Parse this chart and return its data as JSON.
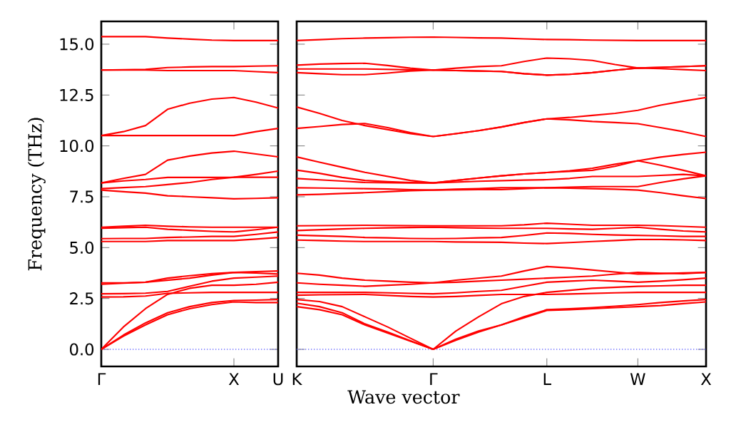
{
  "chart_data": [
    {
      "type": "line",
      "ylabel": "Frequency (THz)",
      "ylim": [
        -0.84,
        16.12
      ],
      "categories": [
        "Γ",
        null,
        null,
        null,
        null,
        null,
        "X",
        null,
        "U"
      ],
      "yticks": [
        {
          "value": 0,
          "label": "0.0"
        },
        {
          "value": 2.5,
          "label": "2.5"
        },
        {
          "value": 5,
          "label": "5.0"
        },
        {
          "value": 7.5,
          "label": "7.5"
        },
        {
          "value": 10,
          "label": "10.0"
        },
        {
          "value": 12.5,
          "label": "12.5"
        },
        {
          "value": 15,
          "label": "15.0"
        }
      ],
      "ref_lines": [
        {
          "axis": "y",
          "value": 0,
          "color": "#6f6fff",
          "line_style": "dotted"
        }
      ],
      "series": [
        {
          "color": "#ff0000",
          "values": [
            0,
            0.65,
            1.2,
            1.7,
            2.0,
            2.2,
            2.33,
            2.3,
            2.3
          ]
        },
        {
          "color": "#ff0000",
          "values": [
            0,
            0.7,
            1.3,
            1.8,
            2.1,
            2.3,
            2.4,
            2.42,
            2.45
          ]
        },
        {
          "color": "#ff0000",
          "values": [
            0,
            1.1,
            2.0,
            2.7,
            3.0,
            3.15,
            3.15,
            3.2,
            3.3
          ]
        },
        {
          "color": "#ff0000",
          "values": [
            2.57,
            2.58,
            2.62,
            2.75,
            2.78,
            2.8,
            2.8,
            2.8,
            2.8
          ]
        },
        {
          "color": "#ff0000",
          "values": [
            2.73,
            2.74,
            2.76,
            2.85,
            3.1,
            3.35,
            3.5,
            3.55,
            3.6
          ]
        },
        {
          "color": "#ff0000",
          "values": [
            3.27,
            3.27,
            3.3,
            3.5,
            3.62,
            3.72,
            3.78,
            3.82,
            3.85
          ]
        },
        {
          "color": "#ff0000",
          "values": [
            3.2,
            3.25,
            3.3,
            3.4,
            3.5,
            3.65,
            3.78,
            3.75,
            3.7
          ]
        },
        {
          "color": "#ff0000",
          "values": [
            5.3,
            5.3,
            5.3,
            5.35,
            5.35,
            5.35,
            5.35,
            5.42,
            5.5
          ]
        },
        {
          "color": "#ff0000",
          "values": [
            5.44,
            5.45,
            5.45,
            5.5,
            5.52,
            5.55,
            5.55,
            5.65,
            5.77
          ]
        },
        {
          "color": "#ff0000",
          "values": [
            5.95,
            5.98,
            6.0,
            5.9,
            5.85,
            5.8,
            5.77,
            5.88,
            6.0
          ]
        },
        {
          "color": "#ff0000",
          "values": [
            6.0,
            6.05,
            6.1,
            6.05,
            6.02,
            6.0,
            6.0,
            6.0,
            6.0
          ]
        },
        {
          "color": "#ff0000",
          "values": [
            7.83,
            7.75,
            7.68,
            7.55,
            7.5,
            7.45,
            7.4,
            7.42,
            7.45
          ]
        },
        {
          "color": "#ff0000",
          "values": [
            7.9,
            7.95,
            8.0,
            8.1,
            8.2,
            8.35,
            8.46,
            8.46,
            8.46
          ]
        },
        {
          "color": "#ff0000",
          "values": [
            8.18,
            8.28,
            8.35,
            8.45,
            8.45,
            8.45,
            8.46,
            8.6,
            8.76
          ]
        },
        {
          "color": "#ff0000",
          "values": [
            8.18,
            8.4,
            8.6,
            9.3,
            9.5,
            9.65,
            9.74,
            9.6,
            9.46
          ]
        },
        {
          "color": "#ff0000",
          "values": [
            10.51,
            10.51,
            10.51,
            10.51,
            10.51,
            10.51,
            10.51,
            10.7,
            10.86
          ]
        },
        {
          "color": "#ff0000",
          "values": [
            10.51,
            10.7,
            11.0,
            11.8,
            12.1,
            12.3,
            12.38,
            12.15,
            11.86
          ]
        },
        {
          "color": "#ff0000",
          "values": [
            13.73,
            13.73,
            13.73,
            13.7,
            13.7,
            13.7,
            13.7,
            13.65,
            13.6
          ]
        },
        {
          "color": "#ff0000",
          "values": [
            13.73,
            13.74,
            13.76,
            13.85,
            13.88,
            13.9,
            13.9,
            13.92,
            13.94
          ]
        },
        {
          "color": "#ff0000",
          "values": [
            15.37,
            15.37,
            15.37,
            15.3,
            15.25,
            15.2,
            15.18,
            15.18,
            15.18
          ]
        }
      ]
    },
    {
      "type": "line",
      "xlabel": "Wave vector",
      "tick_labels": "x",
      "ylim": [
        -0.84,
        16.12
      ],
      "categories": [
        "K",
        null,
        null,
        null,
        null,
        null,
        "Γ",
        null,
        null,
        null,
        null,
        "L",
        null,
        null,
        null,
        "W",
        null,
        null,
        "X"
      ],
      "yticks": [
        0,
        2.5,
        5,
        7.5,
        10,
        12.5,
        15
      ],
      "ref_lines": [
        {
          "axis": "y",
          "value": 0,
          "color": "#6f6fff",
          "line_style": "dotted"
        }
      ],
      "series": [
        {
          "color": "#ff0000",
          "values": [
            2.1,
            1.95,
            1.7,
            1.2,
            0.8,
            0.4,
            0,
            0.45,
            0.85,
            1.2,
            1.55,
            1.91,
            1.95,
            2.0,
            2.05,
            2.1,
            2.15,
            2.25,
            2.33
          ]
        },
        {
          "color": "#ff0000",
          "values": [
            2.27,
            2.1,
            1.8,
            1.25,
            0.85,
            0.42,
            0,
            0.5,
            0.9,
            1.2,
            1.6,
            1.95,
            2.0,
            2.05,
            2.12,
            2.2,
            2.3,
            2.38,
            2.45
          ]
        },
        {
          "color": "#ff0000",
          "values": [
            2.45,
            2.35,
            2.1,
            1.6,
            1.1,
            0.55,
            0,
            0.9,
            1.6,
            2.24,
            2.6,
            2.8,
            2.9,
            3.0,
            3.05,
            3.1,
            3.12,
            3.15,
            3.15
          ]
        },
        {
          "color": "#ff0000",
          "values": [
            2.66,
            2.68,
            2.69,
            2.7,
            2.65,
            2.6,
            2.57,
            2.6,
            2.65,
            2.7,
            2.7,
            2.7,
            2.72,
            2.75,
            2.78,
            2.8,
            2.8,
            2.8,
            2.8
          ]
        },
        {
          "color": "#ff0000",
          "values": [
            2.8,
            2.8,
            2.8,
            2.8,
            2.78,
            2.75,
            2.73,
            2.78,
            2.85,
            2.9,
            3.1,
            3.3,
            3.35,
            3.4,
            3.35,
            3.3,
            3.35,
            3.42,
            3.5
          ]
        },
        {
          "color": "#ff0000",
          "values": [
            3.27,
            3.2,
            3.15,
            3.1,
            3.15,
            3.2,
            3.27,
            3.3,
            3.35,
            3.4,
            3.45,
            3.5,
            3.55,
            3.6,
            3.7,
            3.78,
            3.74,
            3.72,
            3.78
          ]
        },
        {
          "color": "#ff0000",
          "values": [
            3.74,
            3.65,
            3.5,
            3.4,
            3.35,
            3.3,
            3.27,
            3.4,
            3.5,
            3.6,
            3.85,
            4.07,
            4.0,
            3.9,
            3.8,
            3.7,
            3.72,
            3.76,
            3.78
          ]
        },
        {
          "color": "#ff0000",
          "values": [
            5.37,
            5.35,
            5.32,
            5.3,
            5.3,
            5.3,
            5.3,
            5.28,
            5.27,
            5.26,
            5.22,
            5.2,
            5.25,
            5.3,
            5.35,
            5.4,
            5.4,
            5.38,
            5.35
          ]
        },
        {
          "color": "#ff0000",
          "values": [
            5.61,
            5.58,
            5.55,
            5.5,
            5.48,
            5.45,
            5.44,
            5.45,
            5.48,
            5.5,
            5.6,
            5.72,
            5.7,
            5.65,
            5.62,
            5.6,
            5.58,
            5.55,
            5.55
          ]
        },
        {
          "color": "#ff0000",
          "values": [
            5.84,
            5.88,
            5.92,
            5.95,
            5.97,
            5.99,
            6.0,
            5.98,
            5.96,
            5.95,
            5.95,
            5.95,
            5.92,
            5.9,
            5.95,
            6.0,
            5.9,
            5.82,
            5.77
          ]
        },
        {
          "color": "#ff0000",
          "values": [
            6.07,
            6.08,
            6.09,
            6.1,
            6.09,
            6.08,
            6.07,
            6.07,
            6.07,
            6.07,
            6.12,
            6.2,
            6.15,
            6.1,
            6.1,
            6.1,
            6.08,
            6.04,
            6.0
          ]
        },
        {
          "color": "#ff0000",
          "values": [
            7.59,
            7.62,
            7.66,
            7.7,
            7.75,
            7.8,
            7.83,
            7.84,
            7.85,
            7.85,
            7.9,
            7.94,
            7.92,
            7.9,
            7.87,
            7.83,
            7.7,
            7.55,
            7.41
          ]
        },
        {
          "color": "#ff0000",
          "values": [
            7.94,
            7.93,
            7.91,
            7.9,
            7.88,
            7.85,
            7.83,
            7.87,
            7.9,
            7.94,
            7.94,
            7.94,
            7.97,
            8.0,
            8.0,
            8.0,
            8.2,
            8.38,
            8.53
          ]
        },
        {
          "color": "#ff0000",
          "values": [
            8.4,
            8.33,
            8.27,
            8.2,
            8.19,
            8.18,
            8.18,
            8.22,
            8.26,
            8.29,
            8.32,
            8.34,
            8.4,
            8.5,
            8.5,
            8.5,
            8.55,
            8.6,
            8.53
          ]
        },
        {
          "color": "#ff0000",
          "values": [
            8.81,
            8.65,
            8.45,
            8.3,
            8.24,
            8.2,
            8.18,
            8.3,
            8.42,
            8.53,
            8.62,
            8.69,
            8.75,
            8.8,
            9.0,
            9.27,
            9.05,
            8.8,
            8.53
          ]
        },
        {
          "color": "#ff0000",
          "values": [
            9.46,
            9.2,
            8.95,
            8.7,
            8.5,
            8.3,
            8.18,
            8.3,
            8.42,
            8.53,
            8.62,
            8.69,
            8.78,
            8.9,
            9.1,
            9.27,
            9.45,
            9.58,
            9.69
          ]
        },
        {
          "color": "#ff0000",
          "values": [
            10.86,
            10.95,
            11.05,
            11.1,
            10.9,
            10.65,
            10.46,
            10.6,
            10.75,
            10.93,
            11.15,
            11.33,
            11.28,
            11.2,
            11.15,
            11.09,
            10.9,
            10.7,
            10.46
          ]
        },
        {
          "color": "#ff0000",
          "values": [
            11.91,
            11.6,
            11.25,
            11.0,
            10.8,
            10.6,
            10.46,
            10.6,
            10.75,
            10.93,
            11.15,
            11.33,
            11.4,
            11.5,
            11.6,
            11.75,
            12.0,
            12.2,
            12.38
          ]
        },
        {
          "color": "#ff0000",
          "values": [
            13.6,
            13.55,
            13.5,
            13.5,
            13.58,
            13.68,
            13.73,
            13.7,
            13.68,
            13.66,
            13.55,
            13.48,
            13.52,
            13.6,
            13.72,
            13.83,
            13.8,
            13.75,
            13.7
          ]
        },
        {
          "color": "#ff0000",
          "values": [
            13.78,
            13.78,
            13.78,
            13.78,
            13.76,
            13.74,
            13.73,
            13.7,
            13.68,
            13.66,
            13.55,
            13.48,
            13.52,
            13.6,
            13.72,
            13.83,
            13.86,
            13.9,
            13.94
          ]
        },
        {
          "color": "#ff0000",
          "values": [
            13.97,
            14.02,
            14.05,
            14.06,
            13.95,
            13.82,
            13.73,
            13.82,
            13.9,
            13.94,
            14.15,
            14.32,
            14.28,
            14.2,
            14.0,
            13.83,
            13.86,
            13.9,
            13.94
          ]
        },
        {
          "color": "#ff0000",
          "values": [
            15.18,
            15.22,
            15.27,
            15.3,
            15.32,
            15.34,
            15.35,
            15.33,
            15.31,
            15.3,
            15.26,
            15.23,
            15.22,
            15.2,
            15.19,
            15.18,
            15.18,
            15.18,
            15.18
          ]
        }
      ]
    }
  ]
}
